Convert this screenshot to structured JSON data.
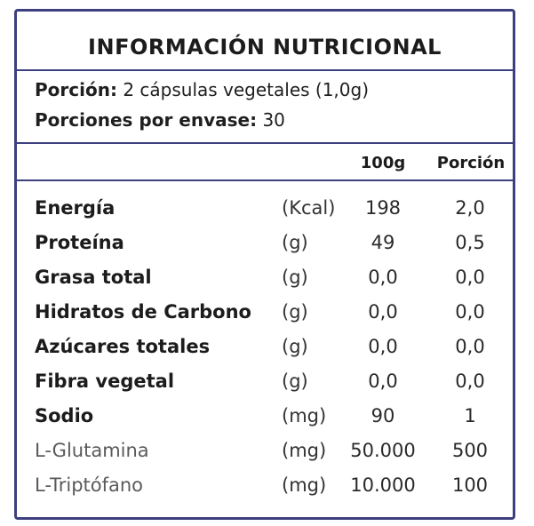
{
  "title": "INFORMACIÓN  NUTRICIONAL",
  "serving": {
    "porcion_label": "Porción:",
    "porcion_value": "2 cápsulas vegetales (1,0g)",
    "envase_label": "Porciones por envase:",
    "envase_value": "30"
  },
  "columns": {
    "per100": "100g",
    "per_serving": "Porción"
  },
  "rows": [
    {
      "name": "Energía",
      "unit": "(Kcal)",
      "per100": "198",
      "per_serving": "2,0"
    },
    {
      "name": "Proteína",
      "unit": "(g)",
      "per100": "49",
      "per_serving": "0,5"
    },
    {
      "name": "Grasa total",
      "unit": "(g)",
      "per100": "0,0",
      "per_serving": "0,0"
    },
    {
      "name": "Hidratos de Carbono",
      "unit": "(g)",
      "per100": "0,0",
      "per_serving": "0,0"
    },
    {
      "name": "Azúcares totales",
      "unit": "(g)",
      "per100": "0,0",
      "per_serving": "0,0"
    },
    {
      "name": "Fibra vegetal",
      "unit": "(g)",
      "per100": "0,0",
      "per_serving": "0,0"
    },
    {
      "name": "Sodio",
      "unit": "(mg)",
      "per100": "90",
      "per_serving": "1"
    },
    {
      "name": "L-Glutamina",
      "unit": "(mg)",
      "per100": "50.000",
      "per_serving": "500"
    },
    {
      "name": "L-Triptófano",
      "unit": "(mg)",
      "per100": "10.000",
      "per_serving": "100"
    }
  ],
  "colors": {
    "border": "#3d3f7e",
    "text": "#1f1f1f",
    "light_text": "#5a5a5a"
  }
}
